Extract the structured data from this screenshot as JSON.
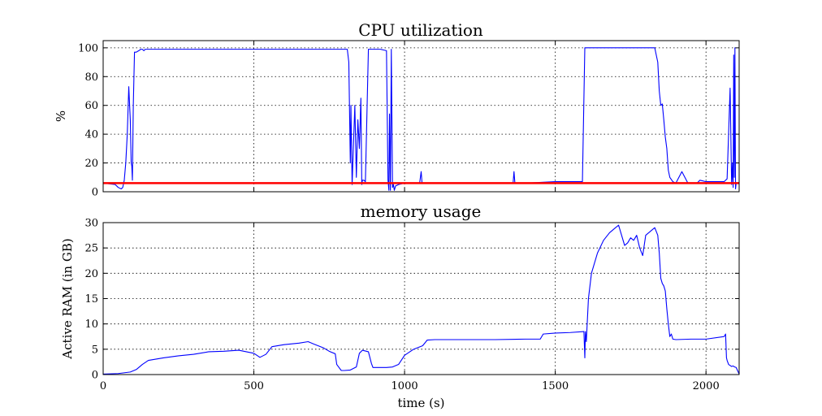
{
  "chart_data": [
    {
      "type": "line",
      "title": "CPU utilization",
      "xlabel": "",
      "ylabel": "%",
      "xlim": [
        0,
        2110
      ],
      "ylim": [
        0,
        105
      ],
      "xticks": [
        0,
        500,
        1000,
        1500,
        2000
      ],
      "yticks": [
        0,
        20,
        40,
        60,
        80,
        100
      ],
      "ytick_labels": [
        "0",
        "20",
        "40",
        "60",
        "80",
        "100"
      ],
      "show_xtick_labels": false,
      "grid": true,
      "series": [
        {
          "color": "#0000ff",
          "x": [
            0,
            40,
            50,
            60,
            65,
            70,
            75,
            80,
            85,
            90,
            93,
            95,
            97,
            100,
            104,
            110,
            118,
            125,
            130,
            135,
            140,
            150,
            200,
            300,
            400,
            500,
            600,
            700,
            750,
            770,
            775,
            778,
            780,
            782,
            785,
            790,
            795,
            800,
            805,
            810,
            815,
            820,
            822,
            826,
            830,
            835,
            840,
            845,
            850,
            855,
            858,
            860,
            865,
            870,
            880,
            888,
            892,
            895,
            900,
            920,
            940,
            945,
            948,
            950,
            953,
            956,
            960,
            963,
            966,
            970,
            980,
            1000,
            1050,
            1055,
            1058,
            1062,
            1100,
            1200,
            1300,
            1360,
            1363,
            1366,
            1400,
            1500,
            1590,
            1598,
            1600,
            1605,
            1700,
            1800,
            1830,
            1840,
            1845,
            1850,
            1855,
            1860,
            1865,
            1870,
            1875,
            1880,
            1890,
            1900,
            1920,
            1940,
            1950,
            1970,
            1980,
            2000,
            2050,
            2060,
            2070,
            2080,
            2085,
            2088,
            2090,
            2092,
            2094,
            2096,
            2098,
            2100,
            2102,
            2104,
            2106,
            2108,
            2110
          ],
          "y": [
            6,
            5,
            3,
            2,
            3,
            8,
            20,
            40,
            73,
            50,
            20,
            18,
            8,
            60,
            97,
            97,
            98,
            99,
            99,
            98,
            99,
            99,
            99,
            99,
            99,
            99,
            99,
            99,
            99,
            99,
            99,
            99,
            99,
            99,
            99,
            99,
            99,
            99,
            99,
            99,
            90,
            20,
            60,
            5,
            30,
            60,
            10,
            50,
            30,
            65,
            5,
            8,
            8,
            7,
            99,
            99,
            99,
            99,
            99,
            99,
            98,
            8,
            1,
            54,
            1,
            99,
            3,
            5,
            1,
            4,
            5,
            6,
            6,
            14,
            6,
            6,
            6,
            6,
            6,
            6,
            14,
            6,
            6,
            7,
            7,
            100,
            100,
            100,
            100,
            100,
            100,
            90,
            70,
            60,
            61,
            50,
            38,
            30,
            15,
            10,
            7,
            6,
            14,
            6,
            6,
            6,
            8,
            7,
            7,
            7,
            9,
            72,
            5,
            20,
            3,
            95,
            10,
            100,
            2,
            6,
            6,
            6,
            6,
            6,
            6
          ],
          "name": ""
        },
        {
          "color": "#ff0000",
          "x": [
            0,
            2110
          ],
          "y": [
            6,
            6
          ],
          "name": ""
        }
      ]
    },
    {
      "type": "line",
      "title": "memory usage",
      "xlabel": "time (s)",
      "ylabel": "Active RAM (in GB)",
      "xlim": [
        0,
        2110
      ],
      "ylim": [
        0,
        30
      ],
      "xticks": [
        0,
        500,
        1000,
        1500,
        2000
      ],
      "xtick_labels": [
        "0",
        "500",
        "1000",
        "1500",
        "2000"
      ],
      "yticks": [
        0,
        5,
        10,
        15,
        20,
        25,
        30
      ],
      "ytick_labels": [
        "0",
        "5",
        "10",
        "15",
        "20",
        "25",
        "30"
      ],
      "show_xtick_labels": true,
      "grid": true,
      "series": [
        {
          "color": "#0000ff",
          "x": [
            0,
            50,
            90,
            110,
            130,
            150,
            200,
            250,
            300,
            350,
            400,
            450,
            500,
            520,
            540,
            560,
            600,
            650,
            680,
            700,
            730,
            750,
            770,
            775,
            780,
            790,
            800,
            820,
            840,
            850,
            860,
            880,
            890,
            895,
            900,
            920,
            940,
            960,
            980,
            1000,
            1030,
            1060,
            1075,
            1100,
            1200,
            1300,
            1400,
            1450,
            1460,
            1500,
            1550,
            1595,
            1598,
            1600,
            1603,
            1605,
            1610,
            1620,
            1640,
            1660,
            1680,
            1700,
            1710,
            1720,
            1730,
            1740,
            1750,
            1760,
            1770,
            1780,
            1790,
            1800,
            1820,
            1830,
            1840,
            1845,
            1850,
            1855,
            1860,
            1865,
            1870,
            1875,
            1880,
            1885,
            1890,
            1900,
            1950,
            2000,
            2060,
            2065,
            2068,
            2070,
            2075,
            2080,
            2085,
            2090,
            2095,
            2100,
            2110
          ],
          "y": [
            0.1,
            0.2,
            0.5,
            1.0,
            2.0,
            2.8,
            3.3,
            3.7,
            4.0,
            4.5,
            4.6,
            4.8,
            4.2,
            3.4,
            4.0,
            5.5,
            5.9,
            6.2,
            6.5,
            6.0,
            5.3,
            4.6,
            4.1,
            2.0,
            1.6,
            0.8,
            0.8,
            0.9,
            1.5,
            4.2,
            4.8,
            4.5,
            2.2,
            1.4,
            1.4,
            1.4,
            1.4,
            1.5,
            2.0,
            3.8,
            5.0,
            5.7,
            6.8,
            6.9,
            6.9,
            6.9,
            7.0,
            7.0,
            8.0,
            8.2,
            8.3,
            8.5,
            3.3,
            8.5,
            6.5,
            9.0,
            15,
            20,
            24,
            26.5,
            28,
            29,
            29.5,
            27.5,
            25.5,
            26,
            27,
            26.5,
            27.5,
            25,
            23.5,
            27.5,
            28.5,
            29,
            27.5,
            24,
            19,
            18,
            17.5,
            16.5,
            13,
            10,
            7.5,
            8,
            7,
            6.9,
            7.0,
            7.0,
            7.5,
            8.0,
            3.3,
            2.8,
            2.0,
            1.8,
            1.6,
            1.7,
            1.5,
            1.4,
            0.1
          ],
          "name": ""
        }
      ]
    }
  ]
}
